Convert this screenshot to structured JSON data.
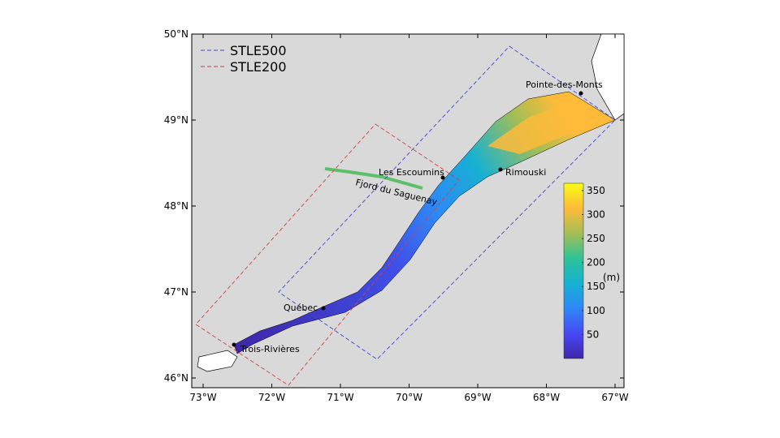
{
  "map": {
    "lon_ticks": [
      "73°W",
      "72°W",
      "71°W",
      "70°W",
      "69°W",
      "68°W",
      "67°W"
    ],
    "lat_ticks": [
      "50°N",
      "49°N",
      "48°N",
      "47°N",
      "46°N"
    ],
    "legend": [
      {
        "label": "STLE500",
        "color": "#4444cc"
      },
      {
        "label": "STLE200",
        "color": "#cc4444"
      }
    ],
    "places": [
      "Pointe-des-Monts",
      "Les Escoumins",
      "Rimouski",
      "Fjord du Saguenay",
      "Québec",
      "Trois-Rivières"
    ],
    "colors": {
      "background": "#d9d9d9",
      "land": "#ffffff"
    }
  },
  "colorbar": {
    "ticks": [
      "350",
      "300",
      "250",
      "200",
      "150",
      "100",
      "50"
    ],
    "unit": "(m)",
    "colormap": [
      "#3e26a8",
      "#4748f4",
      "#2e87f7",
      "#17b1d3",
      "#2dc397",
      "#a4be54",
      "#fdbb39",
      "#f9fb15"
    ],
    "range": [
      0,
      365
    ]
  }
}
